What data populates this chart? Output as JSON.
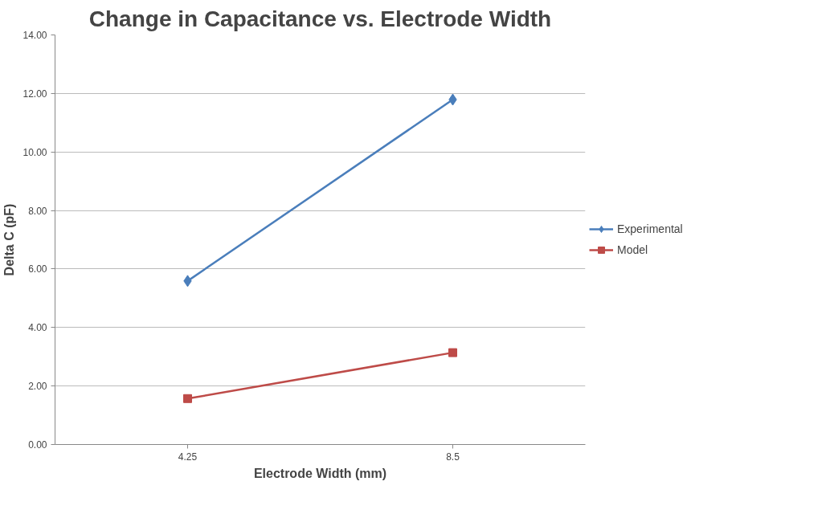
{
  "chart_data": {
    "type": "line",
    "title": "Change in Capacitance vs. Electrode Width",
    "xlabel": "Electrode Width (mm)",
    "ylabel": "Delta C (pF)",
    "categories": [
      "4.25",
      "8.5"
    ],
    "series": [
      {
        "name": "Experimental",
        "color": "#4a7ebb",
        "values": [
          5.59,
          11.79
        ],
        "marker": "diamond"
      },
      {
        "name": "Model",
        "color": "#be4b48",
        "values": [
          1.57,
          3.14
        ],
        "marker": "square"
      }
    ],
    "ylim": [
      0,
      14
    ],
    "yticks": [
      {
        "value": 0,
        "label": "0.00"
      },
      {
        "value": 2,
        "label": "2.00"
      },
      {
        "value": 4,
        "label": "4.00"
      },
      {
        "value": 6,
        "label": "6.00"
      },
      {
        "value": 8,
        "label": "8.00"
      },
      {
        "value": 10,
        "label": "10.00"
      },
      {
        "value": 12,
        "label": "12.00"
      },
      {
        "value": 14,
        "label": "14.00"
      }
    ],
    "grid": "y",
    "legend": "right",
    "line_style": "solid"
  }
}
